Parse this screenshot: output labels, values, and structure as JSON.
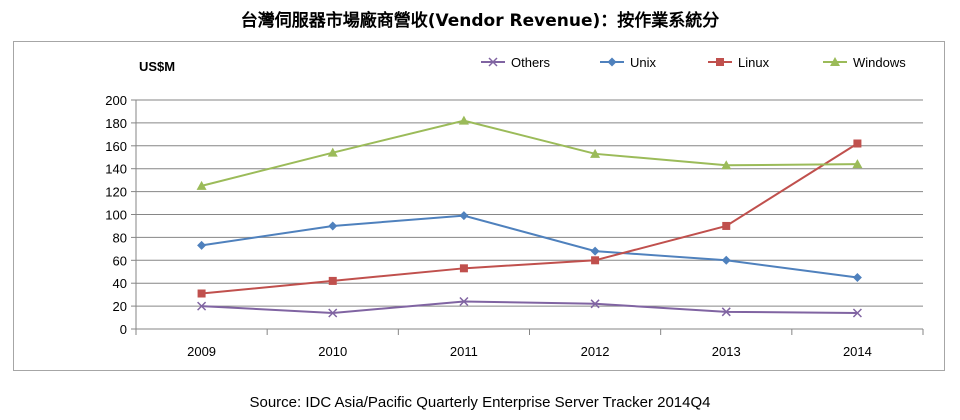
{
  "title": "台灣伺服器市場廠商營收(Vendor Revenue)：按作業系統分",
  "source": "Source: IDC Asia/Pacific Quarterly Enterprise Server Tracker 2014Q4",
  "chart_data": {
    "type": "line",
    "title": "台灣伺服器市場廠商營收(Vendor Revenue)：按作業系統分",
    "ylabel": "US$M",
    "xlabel": "",
    "categories": [
      "2009",
      "2010",
      "2011",
      "2012",
      "2013",
      "2014"
    ],
    "ylim": [
      0,
      200
    ],
    "yticks": [
      0,
      20,
      40,
      60,
      80,
      100,
      120,
      140,
      160,
      180,
      200
    ],
    "grid": true,
    "legend_position": "top-right",
    "series": [
      {
        "name": "Others",
        "color": "#8064a2",
        "marker": "x",
        "values": [
          20,
          14,
          24,
          22,
          15,
          14
        ]
      },
      {
        "name": "Unix",
        "color": "#4f81bd",
        "marker": "diamond",
        "values": [
          73,
          90,
          99,
          68,
          60,
          45
        ]
      },
      {
        "name": "Linux",
        "color": "#c0504d",
        "marker": "square",
        "values": [
          31,
          42,
          53,
          60,
          90,
          162
        ]
      },
      {
        "name": "Windows",
        "color": "#9bbb59",
        "marker": "triangle",
        "values": [
          125,
          154,
          182,
          153,
          143,
          144
        ]
      }
    ]
  }
}
